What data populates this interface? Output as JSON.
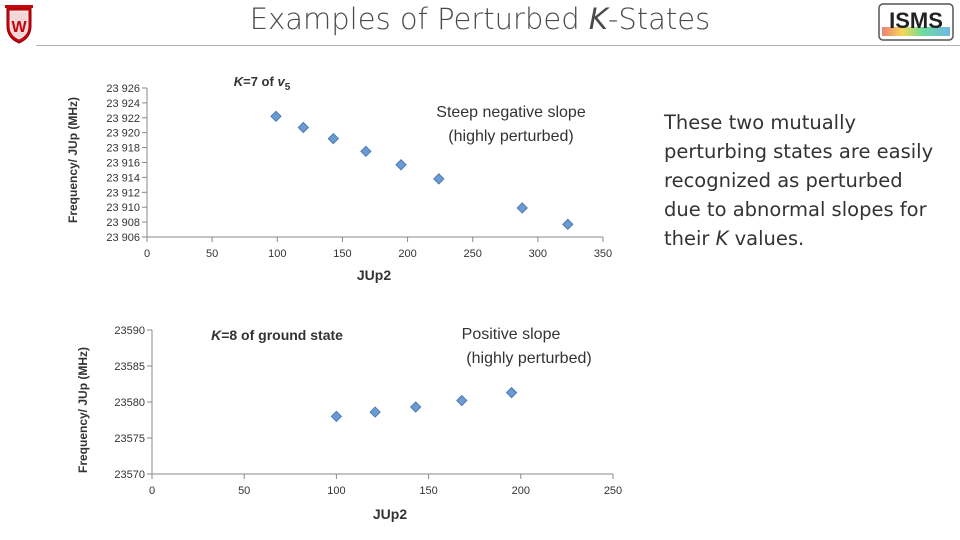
{
  "slide": {
    "title_prefix": "Examples of Perturbed ",
    "title_k": "K",
    "title_suffix": "-States",
    "side_text_main": "These two mutually perturbing states are easily recognized as perturbed due to abnormal slopes for their ",
    "side_text_k": "K",
    "side_text_end": " values.",
    "logo_right_text": "ISMS"
  },
  "colors": {
    "marker_fill": "#6b9bd2",
    "marker_stroke": "#4a7ab5",
    "axis": "#888888",
    "rule": "#b0b0b0",
    "logo_left_red": "#c5050c"
  },
  "chart_data": [
    {
      "type": "scatter",
      "title_k": "K",
      "title_mid": "=7 of ",
      "title_nu": "v",
      "title_sub": "5",
      "annotation_line1": "Steep negative slope",
      "annotation_line2": "(highly perturbed)",
      "xlabel": "JUp2",
      "ylabel": "Frequency/ JUp (MHz)",
      "xlim": [
        0,
        350
      ],
      "ylim": [
        23906,
        23926
      ],
      "xticks": [
        "0",
        "50",
        "100",
        "150",
        "200",
        "250",
        "300",
        "350"
      ],
      "yticks": [
        "23 926",
        "23 924",
        "23 922",
        "23 920",
        "23 918",
        "23 916",
        "23 914",
        "23 912",
        "23 910",
        "23 908",
        "23 906"
      ],
      "x": [
        99,
        120,
        143,
        168,
        195,
        224,
        288,
        323
      ],
      "y": [
        23922.2,
        23920.7,
        23919.2,
        23917.5,
        23915.7,
        23913.8,
        23909.9,
        23907.7
      ]
    },
    {
      "type": "scatter",
      "title_k": "K",
      "title_rest": "=8 of ground state",
      "annotation_line1": "Positive slope",
      "annotation_line2": "(highly perturbed)",
      "xlabel": "JUp2",
      "ylabel": "Frequency/ JUp (MHz)",
      "xlim": [
        0,
        250
      ],
      "ylim": [
        23570,
        23590
      ],
      "xticks": [
        "0",
        "50",
        "100",
        "150",
        "200",
        "250"
      ],
      "yticks": [
        "23590",
        "23585",
        "23580",
        "23575",
        "23570"
      ],
      "x": [
        100,
        121,
        143,
        168,
        195
      ],
      "y": [
        23578.0,
        23578.6,
        23579.3,
        23580.2,
        23581.3
      ]
    }
  ]
}
